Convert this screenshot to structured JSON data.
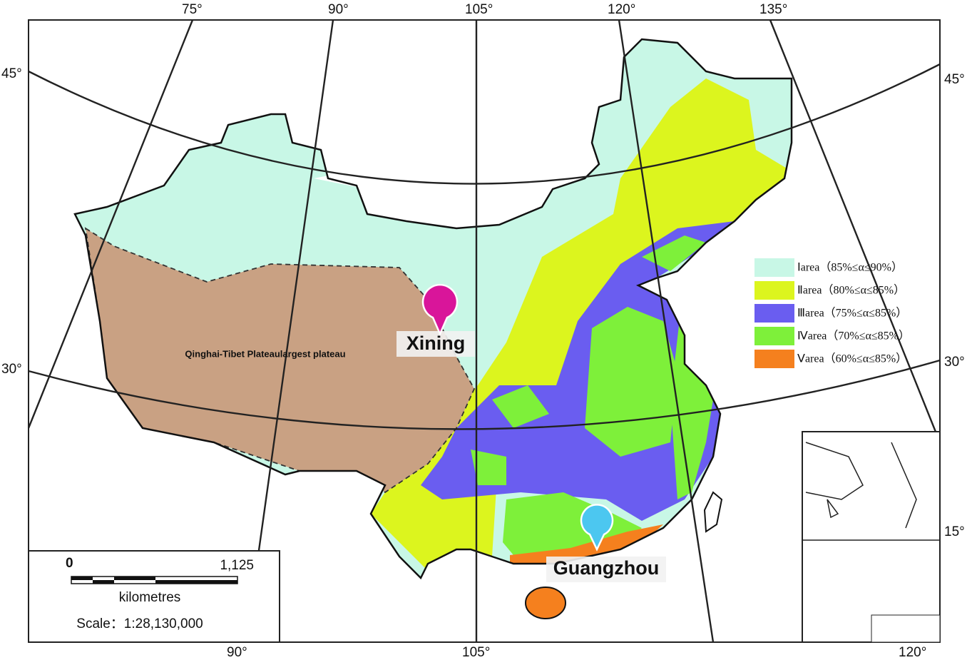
{
  "graticule_labels": {
    "top": [
      "75°",
      "90°",
      "105°",
      "120°",
      "135°"
    ],
    "left": [
      "45°",
      "30°"
    ],
    "right": [
      "45°",
      "30°",
      "15°"
    ],
    "bottom": [
      "90°",
      "105°",
      "120°"
    ]
  },
  "legend": [
    {
      "label": "Ⅰarea（85%≤α≤90%）",
      "color": "#c8f7e6"
    },
    {
      "label": "Ⅱarea（80%≤α≤85%）",
      "color": "#dcf51e"
    },
    {
      "label": "Ⅲarea（75%≤α≤85%）",
      "color": "#6a5df0"
    },
    {
      "label": "Ⅳarea（70%≤α≤85%）",
      "color": "#7ef03a"
    },
    {
      "label": "Ⅴarea（60%≤α≤85%）",
      "color": "#f5801e"
    }
  ],
  "region_label": {
    "text": "Qinghai-Tibet Plateaulargest plateau",
    "color": "#c9a183"
  },
  "places": [
    {
      "name": "Xining",
      "color": "#d9159a"
    },
    {
      "name": "Guangzhou",
      "color": "#4cc7f0"
    }
  ],
  "scale": {
    "start": "0",
    "end": "1,125",
    "unit": "kilometres",
    "ratio": "Scale：1:28,130,000"
  }
}
